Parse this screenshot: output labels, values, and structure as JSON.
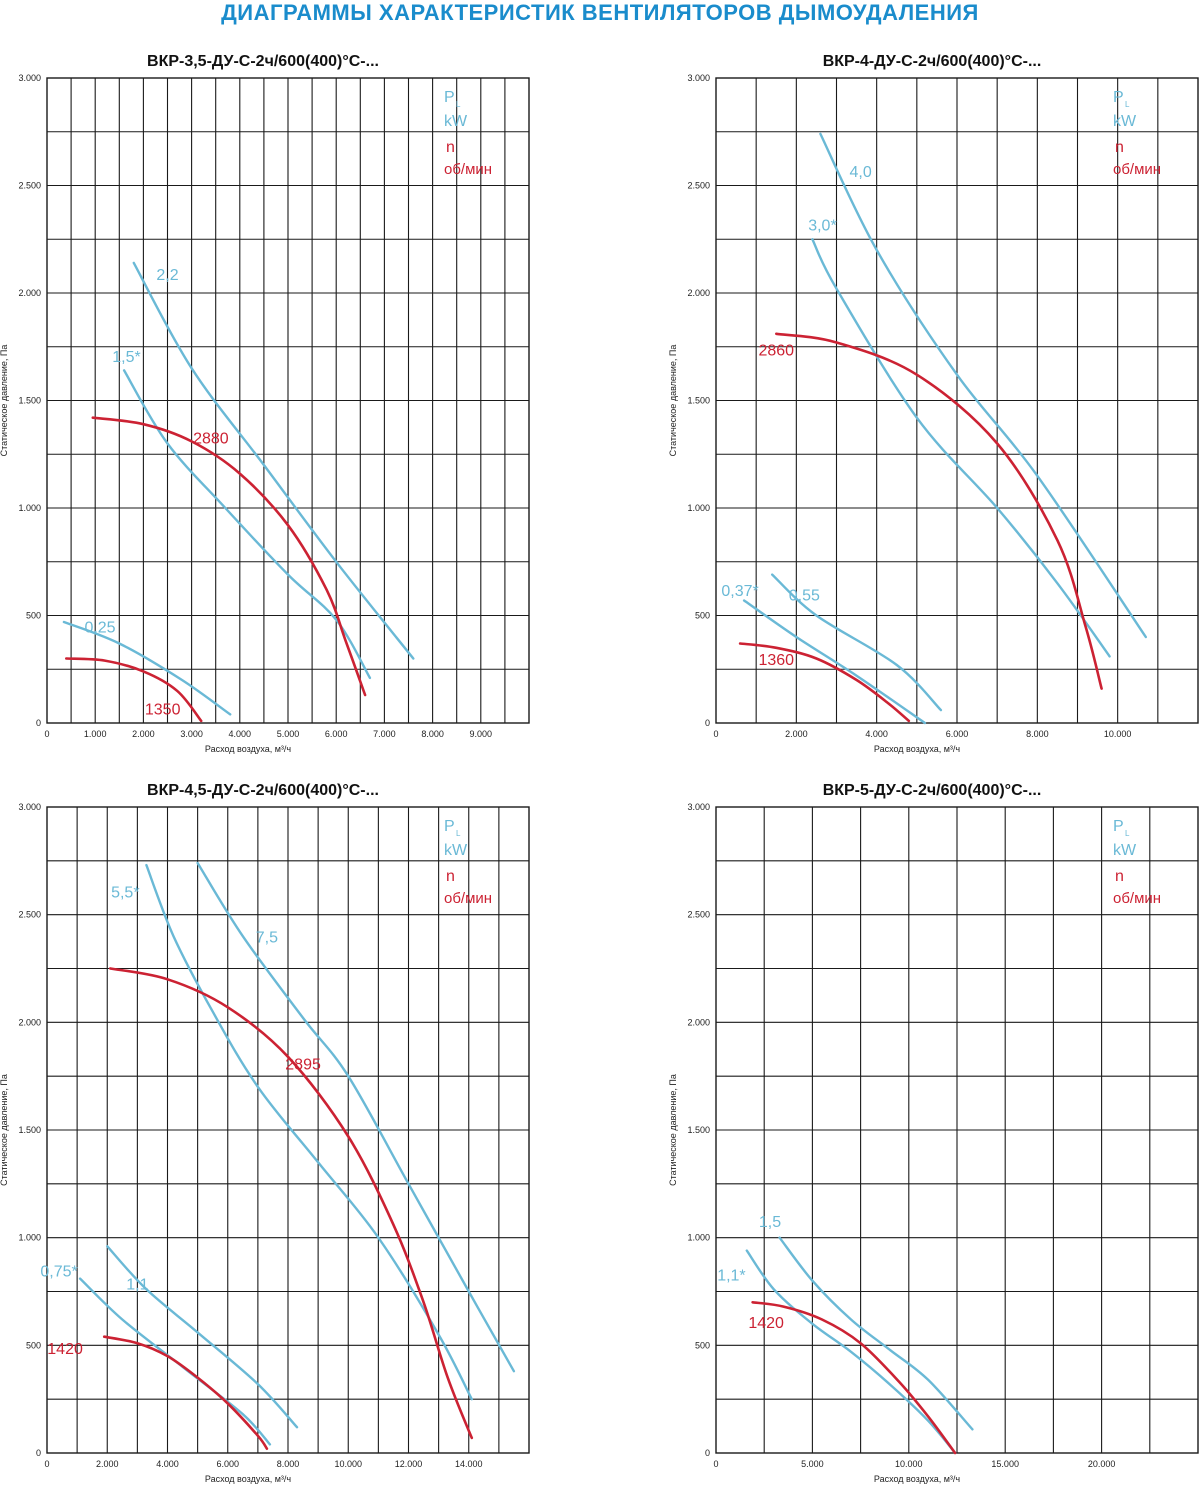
{
  "page_title": "ДИАГРАММЫ ХАРАКТЕРИСТИК ВЕНТИЛЯТОРОВ ДЫМОУДАЛЕНИЯ",
  "colors": {
    "title": "#1a8ccc",
    "power_curve": "#6ab9d6",
    "speed_curve": "#cc2233",
    "grid": "#1a1a1a"
  },
  "chart_data": [
    {
      "type": "line",
      "title": "ВКР-3,5-ДУ-С-2ч/600(400)°С-...",
      "xlabel": "Расход воздуха, м³/ч",
      "ylabel": "Статическое давление, Па",
      "legend": {
        "power_symbol": "P",
        "power_sub": "L",
        "power_unit": "kW",
        "speed_symbol": "n",
        "speed_unit": "об/мин"
      },
      "legend_position": "top-right",
      "grid": true,
      "xlim": [
        0,
        10000
      ],
      "ylim": [
        0,
        3000
      ],
      "x_ticks": [
        0,
        1000,
        2000,
        3000,
        4000,
        5000,
        6000,
        7000,
        8000,
        9000
      ],
      "x_tick_labels": [
        "0",
        "1.000",
        "2.000",
        "3.000",
        "4.000",
        "5.000",
        "6.000",
        "7.000",
        "8.000",
        "9.000"
      ],
      "y_ticks": [
        0,
        500,
        1000,
        1500,
        2000,
        2500,
        3000
      ],
      "y_tick_labels": [
        "0",
        "500",
        "1.000",
        "1.500",
        "2.000",
        "2.500",
        "3.000"
      ],
      "series": [
        {
          "kind": "power",
          "name": "2,2",
          "label_at": [
            2500,
            2060
          ],
          "points": [
            [
              1800,
              2140
            ],
            [
              3000,
              1650
            ],
            [
              4500,
              1200
            ],
            [
              6000,
              750
            ],
            [
              7600,
              300
            ]
          ]
        },
        {
          "kind": "power",
          "name": "1,5*",
          "label_at": [
            1650,
            1680
          ],
          "points": [
            [
              1600,
              1640
            ],
            [
              2500,
              1300
            ],
            [
              3700,
              1000
            ],
            [
              5000,
              690
            ],
            [
              6000,
              480
            ],
            [
              6700,
              210
            ]
          ]
        },
        {
          "kind": "power",
          "name": "0,25",
          "label_at": [
            1100,
            420
          ],
          "points": [
            [
              350,
              470
            ],
            [
              1500,
              370
            ],
            [
              2800,
              200
            ],
            [
              3800,
              40
            ]
          ]
        },
        {
          "kind": "speed",
          "name": "2880",
          "label_at": [
            3400,
            1300
          ],
          "points": [
            [
              950,
              1420
            ],
            [
              2000,
              1390
            ],
            [
              3000,
              1310
            ],
            [
              4000,
              1160
            ],
            [
              5000,
              920
            ],
            [
              5800,
              620
            ],
            [
              6200,
              380
            ],
            [
              6600,
              130
            ]
          ]
        },
        {
          "kind": "speed",
          "name": "1350",
          "label_at": [
            2400,
            40
          ],
          "points": [
            [
              400,
              300
            ],
            [
              1200,
              290
            ],
            [
              2000,
              240
            ],
            [
              2700,
              150
            ],
            [
              3200,
              10
            ]
          ]
        }
      ]
    },
    {
      "type": "line",
      "title": "ВКР-4-ДУ-С-2ч/600(400)°С-...",
      "xlabel": "Расход воздуха, м³/ч",
      "ylabel": "Статическое давление, Па",
      "legend": {
        "power_symbol": "P",
        "power_sub": "L",
        "power_unit": "kW",
        "speed_symbol": "n",
        "speed_unit": "об/мин"
      },
      "legend_position": "top-right",
      "grid": true,
      "xlim": [
        0,
        12000
      ],
      "ylim": [
        0,
        3000
      ],
      "x_ticks": [
        0,
        2000,
        4000,
        6000,
        8000,
        10000
      ],
      "x_tick_labels": [
        "0",
        "2.000",
        "4.000",
        "6.000",
        "8.000",
        "10.000"
      ],
      "y_ticks": [
        0,
        500,
        1000,
        1500,
        2000,
        2500,
        3000
      ],
      "y_tick_labels": [
        "0",
        "500",
        "1.000",
        "1.500",
        "2.000",
        "2.500",
        "3.000"
      ],
      "series": [
        {
          "kind": "power",
          "name": "4,0",
          "label_at": [
            3600,
            2540
          ],
          "points": [
            [
              2600,
              2740
            ],
            [
              4000,
              2200
            ],
            [
              6000,
              1620
            ],
            [
              8000,
              1150
            ],
            [
              10700,
              400
            ]
          ]
        },
        {
          "kind": "power",
          "name": "3,0*",
          "label_at": [
            2650,
            2290
          ],
          "points": [
            [
              2400,
              2250
            ],
            [
              3000,
              2020
            ],
            [
              5000,
              1420
            ],
            [
              7000,
              1000
            ],
            [
              8500,
              650
            ],
            [
              9800,
              310
            ]
          ]
        },
        {
          "kind": "power",
          "name": "0,37*",
          "label_at": [
            600,
            590
          ],
          "points": [
            [
              700,
              570
            ],
            [
              2000,
              400
            ],
            [
              3500,
              220
            ],
            [
              5200,
              0
            ]
          ]
        },
        {
          "kind": "power",
          "name": "0,55",
          "label_at": [
            2200,
            570
          ],
          "points": [
            [
              1400,
              690
            ],
            [
              2500,
              500
            ],
            [
              4500,
              270
            ],
            [
              5600,
              60
            ]
          ]
        },
        {
          "kind": "speed",
          "name": "2860",
          "label_at": [
            1500,
            1710
          ],
          "points": [
            [
              1500,
              1810
            ],
            [
              3000,
              1770
            ],
            [
              5000,
              1620
            ],
            [
              7000,
              1300
            ],
            [
              8500,
              850
            ],
            [
              9200,
              450
            ],
            [
              9600,
              160
            ]
          ]
        },
        {
          "kind": "speed",
          "name": "1360",
          "label_at": [
            1500,
            270
          ],
          "points": [
            [
              600,
              370
            ],
            [
              1500,
              350
            ],
            [
              2500,
              300
            ],
            [
              3500,
              200
            ],
            [
              4300,
              90
            ],
            [
              4800,
              10
            ]
          ]
        }
      ]
    },
    {
      "type": "line",
      "title": "ВКР-4,5-ДУ-С-2ч/600(400)°С-...",
      "xlabel": "Расход воздуха, м³/ч",
      "ylabel": "Статическое давление, Па",
      "legend": {
        "power_symbol": "P",
        "power_sub": "L",
        "power_unit": "kW",
        "speed_symbol": "n",
        "speed_unit": "об/мин"
      },
      "legend_position": "top-right",
      "grid": true,
      "xlim": [
        0,
        16000
      ],
      "ylim": [
        0,
        3000
      ],
      "x_ticks": [
        0,
        2000,
        4000,
        6000,
        8000,
        10000,
        12000,
        14000
      ],
      "x_tick_labels": [
        "0",
        "2.000",
        "4.000",
        "6.000",
        "8.000",
        "10.000",
        "12.000",
        "14.000"
      ],
      "y_ticks": [
        0,
        500,
        1000,
        1500,
        2000,
        2500,
        3000
      ],
      "y_tick_labels": [
        "0",
        "500",
        "1.000",
        "1.500",
        "2.000",
        "2.500",
        "3.000"
      ],
      "series": [
        {
          "kind": "power",
          "name": "7,5",
          "label_at": [
            7300,
            2370
          ],
          "points": [
            [
              5000,
              2740
            ],
            [
              6500,
              2400
            ],
            [
              8500,
              2020
            ],
            [
              10000,
              1750
            ],
            [
              12000,
              1250
            ],
            [
              14000,
              750
            ],
            [
              15500,
              380
            ]
          ]
        },
        {
          "kind": "power",
          "name": "5,5*",
          "label_at": [
            2600,
            2580
          ],
          "points": [
            [
              3300,
              2730
            ],
            [
              4200,
              2400
            ],
            [
              5500,
              2050
            ],
            [
              7000,
              1700
            ],
            [
              9000,
              1350
            ],
            [
              11000,
              1000
            ],
            [
              13000,
              550
            ],
            [
              14100,
              250
            ]
          ]
        },
        {
          "kind": "power",
          "name": "0,75*",
          "label_at": [
            400,
            820
          ],
          "points": [
            [
              1100,
              810
            ],
            [
              2500,
              620
            ],
            [
              4500,
              400
            ],
            [
              6500,
              180
            ],
            [
              7400,
              40
            ]
          ]
        },
        {
          "kind": "power",
          "name": "1,1",
          "label_at": [
            3000,
            760
          ],
          "points": [
            [
              2000,
              960
            ],
            [
              3300,
              760
            ],
            [
              5000,
              560
            ],
            [
              7000,
              320
            ],
            [
              8300,
              120
            ]
          ]
        },
        {
          "kind": "speed",
          "name": "2895",
          "label_at": [
            8500,
            1780
          ],
          "points": [
            [
              2100,
              2250
            ],
            [
              4000,
              2200
            ],
            [
              6000,
              2070
            ],
            [
              8000,
              1840
            ],
            [
              10000,
              1470
            ],
            [
              11500,
              1060
            ],
            [
              12500,
              700
            ],
            [
              13300,
              350
            ],
            [
              14100,
              70
            ]
          ]
        },
        {
          "kind": "speed",
          "name": "1420",
          "label_at": [
            600,
            460
          ],
          "points": [
            [
              1900,
              540
            ],
            [
              3000,
              510
            ],
            [
              4000,
              450
            ],
            [
              5000,
              350
            ],
            [
              6000,
              230
            ],
            [
              7000,
              80
            ],
            [
              7300,
              20
            ]
          ]
        }
      ]
    },
    {
      "type": "line",
      "title": "ВКР-5-ДУ-С-2ч/600(400)°С-...",
      "xlabel": "Расход воздуха, м³/ч",
      "ylabel": "Статическое давление, Па",
      "legend": {
        "power_symbol": "P",
        "power_sub": "L",
        "power_unit": "kW",
        "speed_symbol": "n",
        "speed_unit": "об/мин"
      },
      "legend_position": "top-right",
      "grid": true,
      "xlim": [
        0,
        25000
      ],
      "ylim": [
        0,
        3000
      ],
      "x_ticks": [
        0,
        5000,
        10000,
        15000,
        20000
      ],
      "x_tick_labels": [
        "0",
        "5.000",
        "10.000",
        "15.000",
        "20.000"
      ],
      "y_ticks": [
        0,
        500,
        1000,
        1500,
        2000,
        2500,
        3000
      ],
      "y_tick_labels": [
        "0",
        "500",
        "1.000",
        "1.500",
        "2.000",
        "2.500",
        "3.000"
      ],
      "series": [
        {
          "kind": "power",
          "name": "1,5",
          "label_at": [
            2800,
            1050
          ],
          "points": [
            [
              3300,
              1000
            ],
            [
              5000,
              800
            ],
            [
              7000,
              620
            ],
            [
              9000,
              480
            ],
            [
              11000,
              340
            ],
            [
              13300,
              110
            ]
          ]
        },
        {
          "kind": "power",
          "name": "1,1*",
          "label_at": [
            800,
            800
          ],
          "points": [
            [
              1600,
              940
            ],
            [
              3000,
              760
            ],
            [
              5000,
              600
            ],
            [
              7000,
              470
            ],
            [
              9000,
              320
            ],
            [
              11000,
              150
            ],
            [
              12400,
              0
            ]
          ]
        },
        {
          "kind": "speed",
          "name": "1420",
          "label_at": [
            2600,
            580
          ],
          "points": [
            [
              1900,
              700
            ],
            [
              3500,
              680
            ],
            [
              5500,
              620
            ],
            [
              7500,
              510
            ],
            [
              9500,
              330
            ],
            [
              11000,
              170
            ],
            [
              12400,
              0
            ]
          ]
        }
      ]
    }
  ]
}
